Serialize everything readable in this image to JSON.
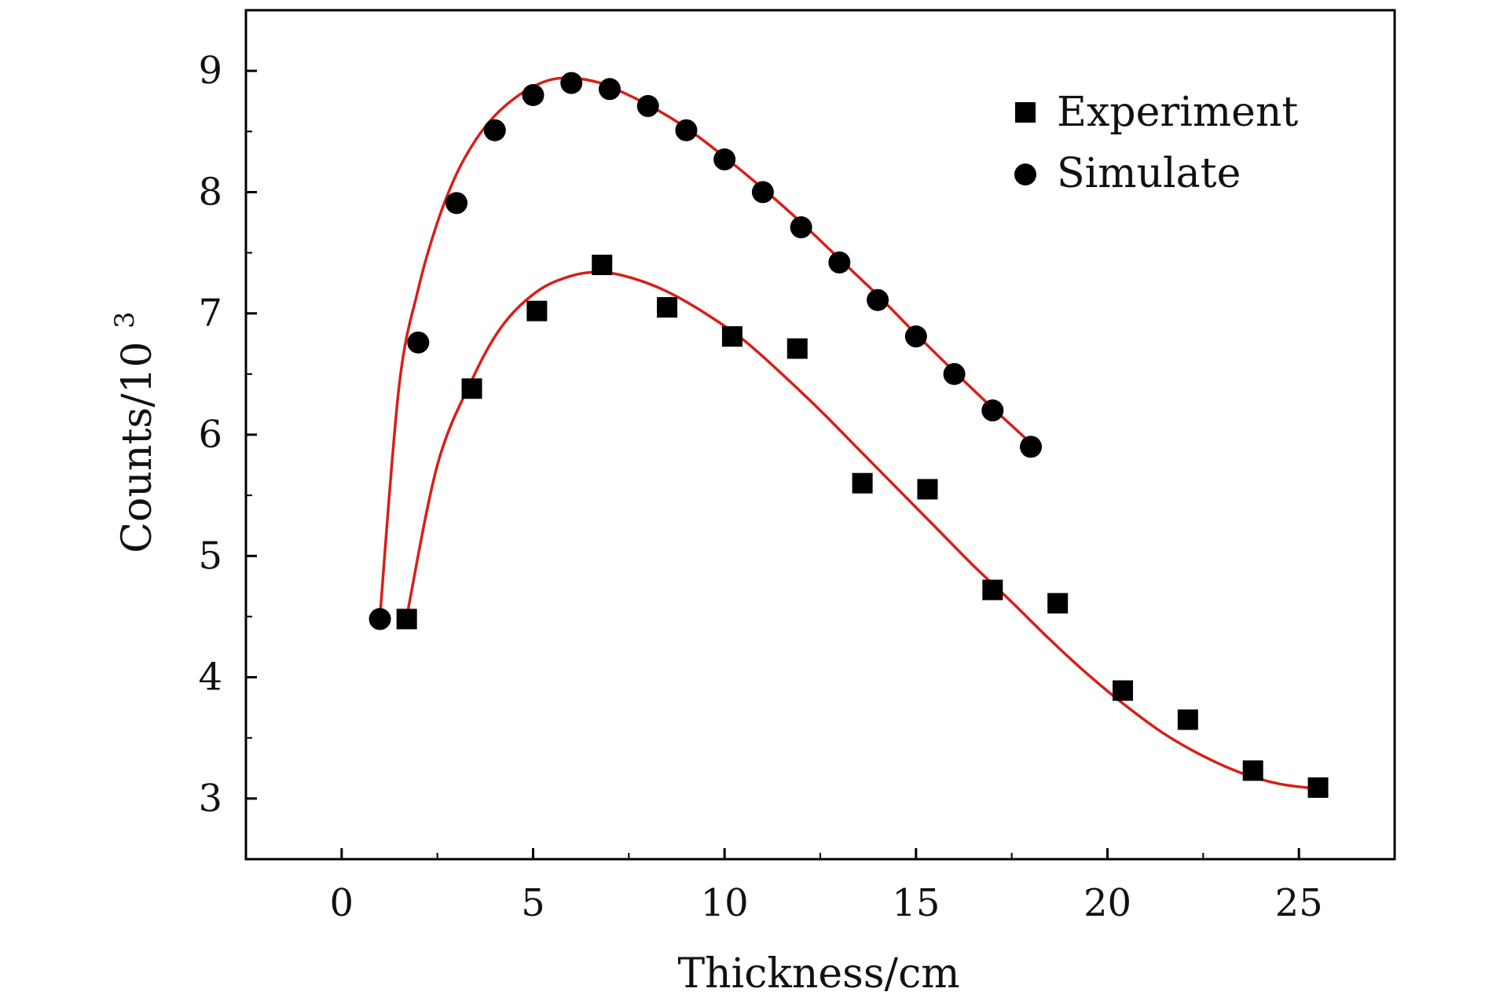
{
  "chart_data": {
    "type": "scatter",
    "title": "",
    "xlabel": "Thickness/cm",
    "ylabel": {
      "base": "Counts/10",
      "superscript": "3"
    },
    "xlim": [
      -2.5,
      27.5
    ],
    "ylim": [
      2.5,
      9.5
    ],
    "x_ticks": [
      "0",
      "5",
      "10",
      "15",
      "20",
      "25"
    ],
    "y_ticks": [
      "3",
      "4",
      "5",
      "6",
      "7",
      "8",
      "9"
    ],
    "legend_position": "top-right",
    "grid": false,
    "colors": {
      "markers": "#000000",
      "fit_line": "#d91e18",
      "axes": "#000000"
    },
    "series": [
      {
        "name": "Experiment",
        "marker": "square",
        "x": [
          1.7,
          3.4,
          5.1,
          6.8,
          8.5,
          10.2,
          11.9,
          13.6,
          15.3,
          17.0,
          18.7,
          20.4,
          22.1,
          23.8,
          25.5
        ],
        "y": [
          4.48,
          6.38,
          7.02,
          7.4,
          7.05,
          6.81,
          6.71,
          5.6,
          5.55,
          4.72,
          4.61,
          3.89,
          3.65,
          3.23,
          3.09
        ],
        "fit_x": [
          1.7,
          2.5,
          3.4,
          4.2,
          5.1,
          6.0,
          6.8,
          7.6,
          8.5,
          9.5,
          10.5,
          11.5,
          12.5,
          13.5,
          14.5,
          15.5,
          16.5,
          17.5,
          18.5,
          19.5,
          20.5,
          21.5,
          22.5,
          23.5,
          24.5,
          25.5
        ],
        "fit_y": [
          4.5,
          5.75,
          6.45,
          6.9,
          7.18,
          7.31,
          7.34,
          7.29,
          7.18,
          7.0,
          6.78,
          6.5,
          6.2,
          5.88,
          5.56,
          5.24,
          4.92,
          4.62,
          4.31,
          4.02,
          3.76,
          3.53,
          3.35,
          3.21,
          3.12,
          3.08
        ]
      },
      {
        "name": "Simulate",
        "marker": "circle",
        "x": [
          1,
          2,
          3,
          4,
          5,
          6,
          7,
          8,
          9,
          10,
          11,
          12,
          13,
          14,
          15,
          16,
          17,
          18
        ],
        "y": [
          4.48,
          6.76,
          7.91,
          8.51,
          8.8,
          8.9,
          8.85,
          8.71,
          8.51,
          8.27,
          8.0,
          7.71,
          7.42,
          7.11,
          6.81,
          6.5,
          6.2,
          5.9
        ],
        "fit_x": [
          1,
          1.5,
          2,
          2.5,
          3,
          3.5,
          4,
          4.5,
          5,
          5.5,
          6,
          6.5,
          7,
          8,
          9,
          10,
          11,
          12,
          13,
          14,
          15,
          16,
          17,
          18
        ],
        "fit_y": [
          4.5,
          6.4,
          7.2,
          7.75,
          8.15,
          8.43,
          8.63,
          8.77,
          8.87,
          8.93,
          8.94,
          8.92,
          8.87,
          8.72,
          8.53,
          8.29,
          8.03,
          7.75,
          7.45,
          7.15,
          6.83,
          6.52,
          6.22,
          5.93
        ]
      }
    ]
  }
}
